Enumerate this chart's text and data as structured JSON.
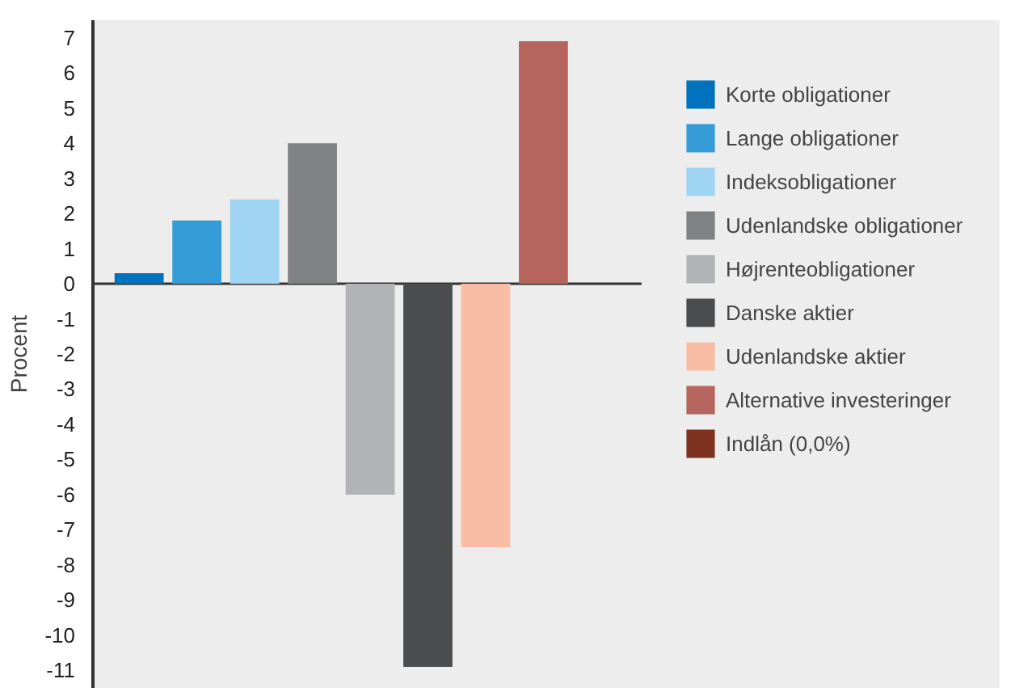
{
  "chart_data": {
    "type": "bar",
    "ylabel": "Procent",
    "categories": [
      null,
      null,
      null,
      null,
      null,
      null,
      null,
      null,
      null
    ],
    "series": [
      {
        "name": "Korte obligationer",
        "color": "#0071bc",
        "values": [
          0.3,
          null,
          null,
          null,
          null,
          null,
          null,
          null,
          null
        ]
      },
      {
        "name": "Lange obligationer",
        "color": "#359cd8",
        "values": [
          null,
          1.8,
          null,
          null,
          null,
          null,
          null,
          null,
          null
        ]
      },
      {
        "name": "Indeksobligationer",
        "color": "#9fd4f2",
        "values": [
          null,
          null,
          2.4,
          null,
          null,
          null,
          null,
          null,
          null
        ]
      },
      {
        "name": "Udenlandske obligationer",
        "color": "#808184",
        "values": [
          null,
          null,
          null,
          4.0,
          null,
          null,
          null,
          null,
          null
        ]
      },
      {
        "name": "Højrenteobligationer",
        "color": "#b2b3b6",
        "values": [
          null,
          null,
          null,
          null,
          -6.0,
          null,
          null,
          null,
          null
        ]
      },
      {
        "name": "Danske aktier",
        "color": "#4b4c4e",
        "values": [
          null,
          null,
          null,
          null,
          null,
          -10.9,
          null,
          null,
          null
        ]
      },
      {
        "name": "Udenlandske aktier",
        "color": "#f9bda6",
        "values": [
          null,
          null,
          null,
          null,
          null,
          null,
          -7.5,
          null,
          null
        ]
      },
      {
        "name": "Alternative investeringer",
        "color": "#b5655d",
        "values": [
          null,
          null,
          null,
          null,
          null,
          null,
          null,
          6.9,
          null
        ]
      },
      {
        "name": "Indlån (0,0%)",
        "color": "#7d3320",
        "values": [
          null,
          null,
          null,
          null,
          null,
          null,
          null,
          null,
          0
        ]
      }
    ],
    "ylim": [
      -11.5,
      7.5
    ],
    "yticks": [
      -11,
      -10,
      -9,
      -8,
      -7,
      -6,
      -5,
      -4,
      -3,
      -2,
      -1,
      0,
      1,
      2,
      3,
      4,
      5,
      6,
      7
    ],
    "ref_lines": [
      {
        "axis": "y",
        "value": 0,
        "color": "#333333"
      }
    ],
    "legend": "right",
    "tick_labels": "y"
  }
}
